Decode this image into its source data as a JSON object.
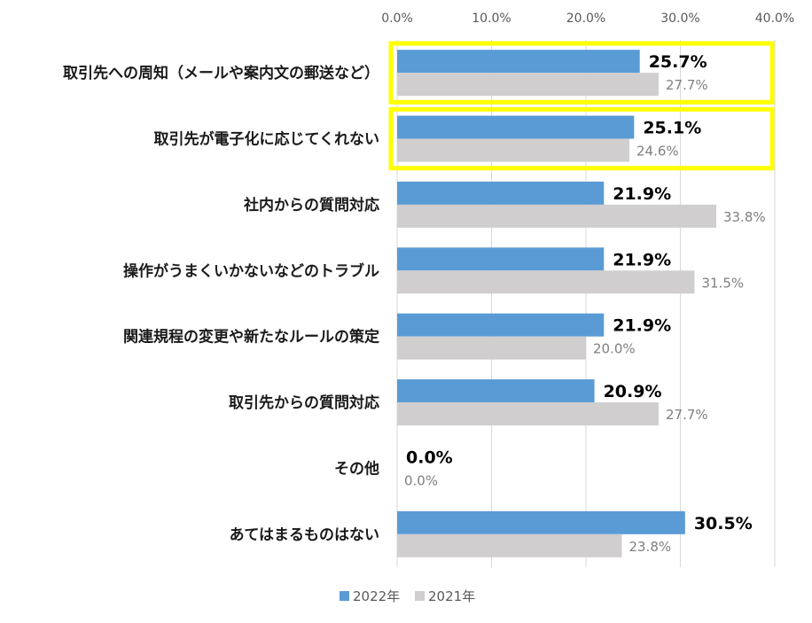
{
  "chart_data": {
    "type": "bar",
    "orientation": "horizontal",
    "categories": [
      "取引先への周知（メールや案内文の郵送など）",
      "取引先が電子化に応じてくれない",
      "社内からの質問対応",
      "操作がうまくいかないなどのトラブル",
      "関連規程の変更や新たなルールの策定",
      "取引先からの質問対応",
      "その他",
      "あてはまるものはない"
    ],
    "series": [
      {
        "name": "2022年",
        "color": "#5b9bd5",
        "values": [
          25.7,
          25.1,
          21.9,
          21.9,
          21.9,
          20.9,
          0.0,
          30.5
        ],
        "labels": [
          "25.7%",
          "25.1%",
          "21.9%",
          "21.9%",
          "21.9%",
          "20.9%",
          "0.0%",
          "30.5%"
        ]
      },
      {
        "name": "2021年",
        "color": "#d0cece",
        "values": [
          27.7,
          24.6,
          33.8,
          31.5,
          20.0,
          27.7,
          0.0,
          23.8
        ],
        "labels": [
          "27.7%",
          "24.6%",
          "33.8%",
          "31.5%",
          "20.0%",
          "27.7%",
          "0.0%",
          "23.8%"
        ]
      }
    ],
    "xlim": [
      0,
      40
    ],
    "xticks": [
      "0.0%",
      "10.0%",
      "20.0%",
      "30.0%",
      "40.0%"
    ],
    "xtick_values": [
      0,
      10,
      20,
      30,
      40
    ],
    "grid": true,
    "xaxis_position": "top",
    "legend": "bottom",
    "highlighted_categories": [
      0,
      1
    ],
    "highlight_color": "#ffff00"
  }
}
